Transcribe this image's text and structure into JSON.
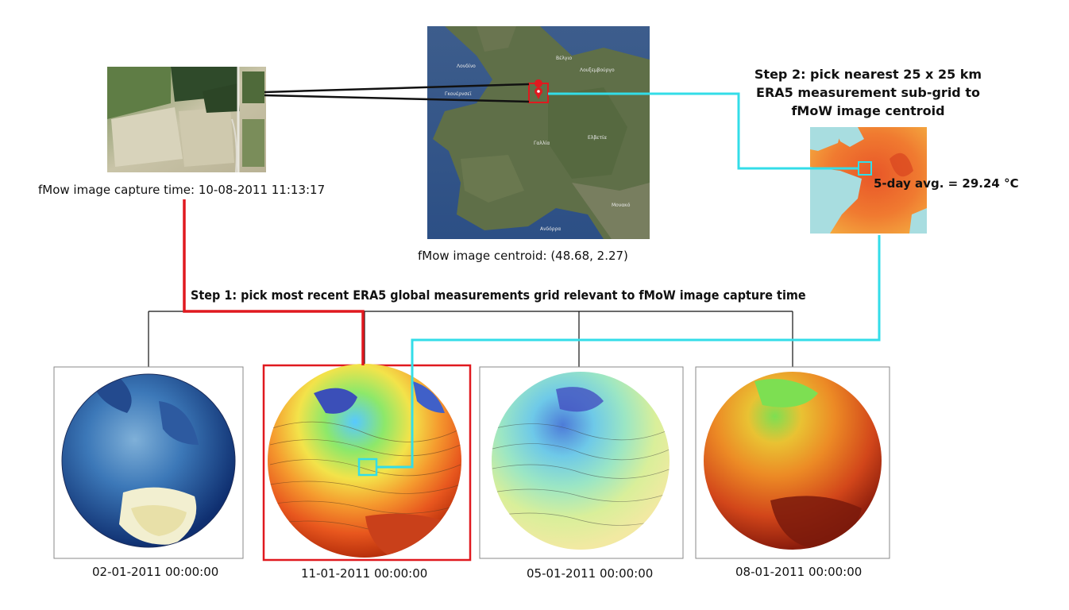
{
  "image": {
    "capture_time_label": "fMow image capture time: 10-08-2011 11:13:17",
    "centroid_label": "fMow image centroid: (48.68, 2.27)"
  },
  "map_place_names": [
    "Λονδίνο",
    "Βέλγιο",
    "Λουξεμβούργο",
    "Γαλλία",
    "Ελβετία",
    "Μονακό",
    "Ανδόρρα",
    "Γκουέρνσεϊ"
  ],
  "step1": {
    "label": "Step 1: pick most recent ERA5 global measurements grid relevant to fMoW image capture time"
  },
  "step2": {
    "lines": [
      "Step 2: pick nearest 25 x 25 km",
      "ERA5 measurement sub-grid to",
      "fMoW image centroid"
    ],
    "avg_label": "5-day avg. = 29.24 °C"
  },
  "globes": [
    {
      "date": "02-01-2011 00:00:00",
      "selected": false,
      "palette": "blue"
    },
    {
      "date": "11-01-2011 00:00:00",
      "selected": true,
      "palette": "warm-contour"
    },
    {
      "date": "05-01-2011 00:00:00",
      "selected": false,
      "palette": "pastel"
    },
    {
      "date": "08-01-2011 00:00:00",
      "selected": false,
      "palette": "hot"
    }
  ],
  "colors": {
    "selection_red": "#e0191f",
    "link_cyan": "#33dde8",
    "tree_black": "#111111"
  }
}
